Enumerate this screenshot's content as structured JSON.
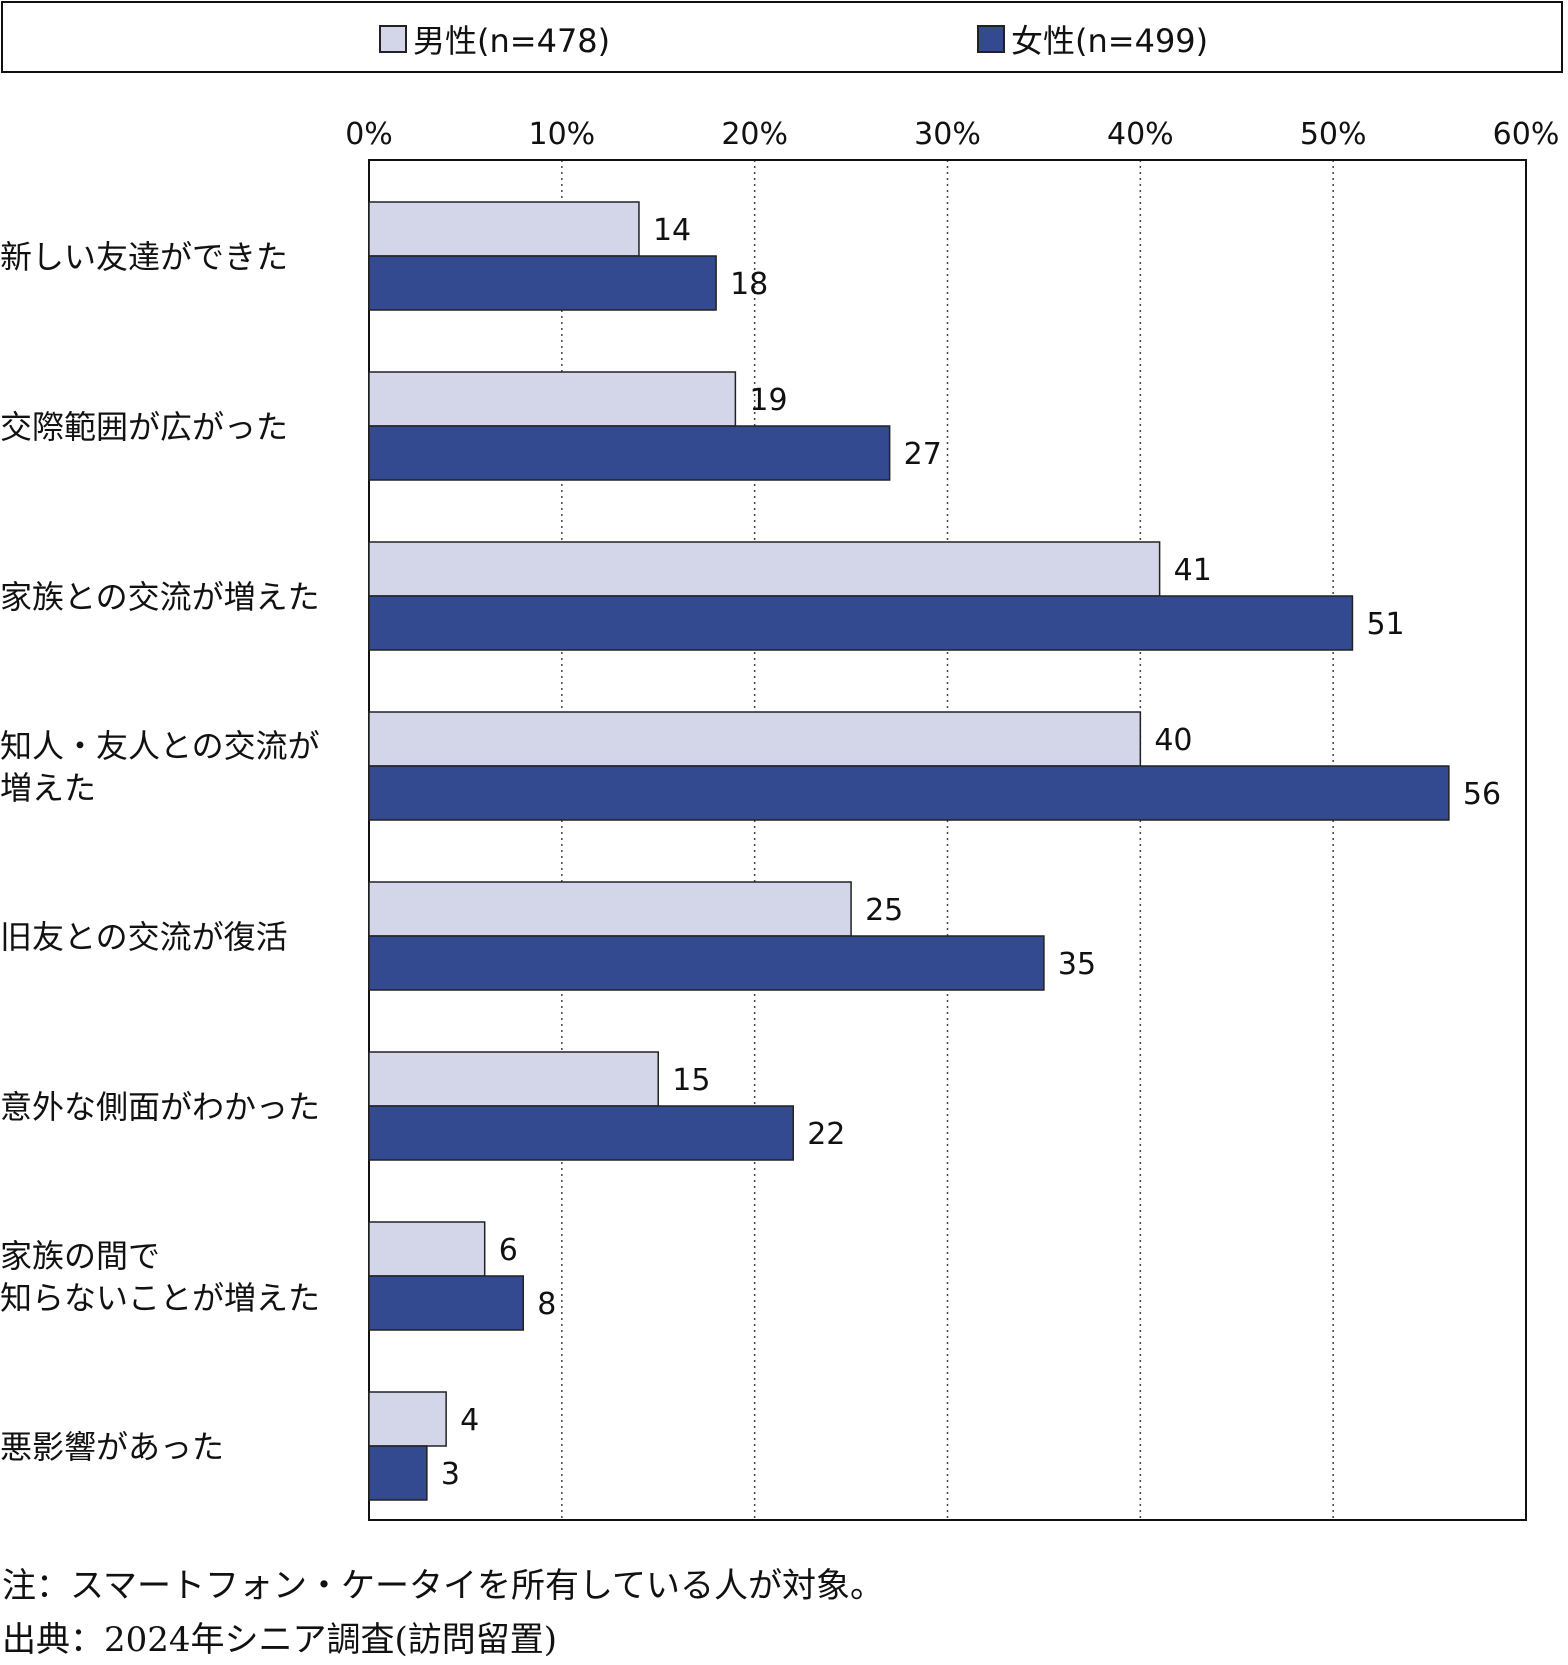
{
  "legend": {
    "male_label": "男性(n=478)",
    "female_label": "女性(n=499)"
  },
  "chart_data": {
    "type": "bar",
    "orientation": "horizontal",
    "xlim": [
      0,
      60
    ],
    "x_ticks": [
      "0%",
      "10%",
      "20%",
      "30%",
      "40%",
      "50%",
      "60%"
    ],
    "grid": "vertical-dotted",
    "legend_position": "top",
    "categories": [
      [
        "新しい友達ができた"
      ],
      [
        "交際範囲が広がった"
      ],
      [
        "家族との交流が増えた"
      ],
      [
        "知人・友人との交流が",
        "増えた"
      ],
      [
        "旧友との交流が復活"
      ],
      [
        "意外な側面がわかった"
      ],
      [
        "家族の間で",
        "知らないことが増えた"
      ],
      [
        "悪影響があった"
      ]
    ],
    "series": [
      {
        "name": "男性(n=478)",
        "color": "#d3d6e8",
        "values": [
          14,
          19,
          41,
          40,
          25,
          15,
          6,
          4
        ]
      },
      {
        "name": "女性(n=499)",
        "color": "#334a90",
        "values": [
          18,
          27,
          51,
          56,
          35,
          22,
          8,
          3
        ]
      }
    ]
  },
  "footer": {
    "note": "注：スマートフォン・ケータイを所有している人が対象。",
    "source": "出典：2024年シニア調査(訪問留置)"
  }
}
